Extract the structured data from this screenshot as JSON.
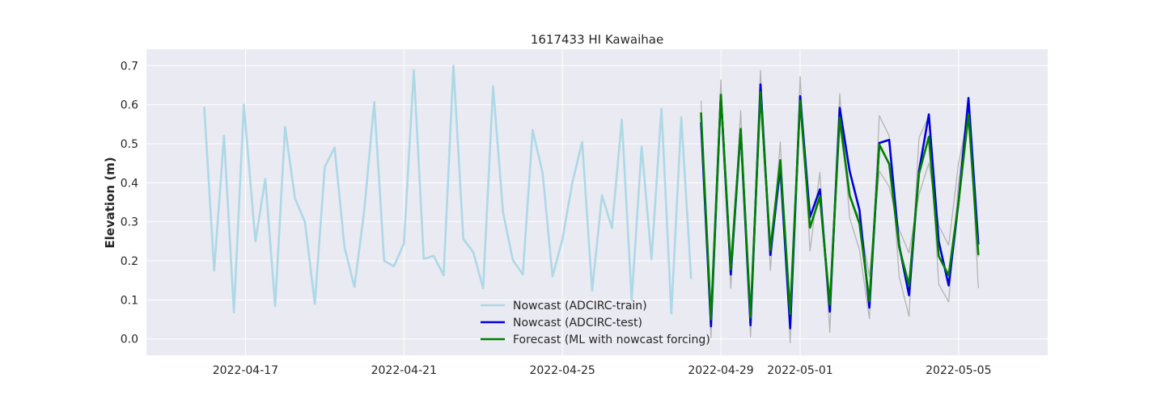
{
  "chart_data": {
    "type": "line",
    "title": "1617433 HI Kawaihae",
    "xlabel": "",
    "ylabel": "Elevation (m)",
    "x_axis": "date",
    "xlim": [
      "2022-04-14T12:00",
      "2022-05-07T06:00"
    ],
    "ylim": [
      -0.042,
      0.742
    ],
    "xticks": [
      "2022-04-17",
      "2022-04-21",
      "2022-04-25",
      "2022-04-29",
      "2022-05-01",
      "2022-05-05"
    ],
    "yticks": [
      0.0,
      0.1,
      0.2,
      0.3,
      0.4,
      0.5,
      0.6,
      0.7
    ],
    "grid": true,
    "legend_position": "lower-center",
    "background_color": "#EAEAF2",
    "series": [
      {
        "name": "Nowcast (ADCIRC-train)",
        "color": "#ADD8E6",
        "points": [
          [
            "2022-04-15T23:00",
            0.595
          ],
          [
            "2022-04-16T05:00",
            0.175
          ],
          [
            "2022-04-16T11:00",
            0.52
          ],
          [
            "2022-04-16T17:00",
            0.068
          ],
          [
            "2022-04-16T23:00",
            0.6
          ],
          [
            "2022-04-17T06:00",
            0.25
          ],
          [
            "2022-04-17T12:00",
            0.41
          ],
          [
            "2022-04-17T18:00",
            0.084
          ],
          [
            "2022-04-18T00:00",
            0.543
          ],
          [
            "2022-04-18T06:00",
            0.36
          ],
          [
            "2022-04-18T12:00",
            0.3
          ],
          [
            "2022-04-18T18:00",
            0.09
          ],
          [
            "2022-04-19T00:00",
            0.44
          ],
          [
            "2022-04-19T06:00",
            0.49
          ],
          [
            "2022-04-19T12:00",
            0.235
          ],
          [
            "2022-04-19T18:00",
            0.133
          ],
          [
            "2022-04-20T00:00",
            0.33
          ],
          [
            "2022-04-20T06:00",
            0.607
          ],
          [
            "2022-04-20T12:00",
            0.2
          ],
          [
            "2022-04-20T18:00",
            0.186
          ],
          [
            "2022-04-21T00:00",
            0.245
          ],
          [
            "2022-04-21T06:00",
            0.688
          ],
          [
            "2022-04-21T12:00",
            0.205
          ],
          [
            "2022-04-21T18:00",
            0.213
          ],
          [
            "2022-04-22T00:00",
            0.163
          ],
          [
            "2022-04-22T06:00",
            0.7
          ],
          [
            "2022-04-22T12:00",
            0.256
          ],
          [
            "2022-04-22T18:00",
            0.222
          ],
          [
            "2022-04-23T00:00",
            0.13
          ],
          [
            "2022-04-23T06:00",
            0.647
          ],
          [
            "2022-04-23T12:00",
            0.325
          ],
          [
            "2022-04-23T18:00",
            0.202
          ],
          [
            "2022-04-24T00:00",
            0.165
          ],
          [
            "2022-04-24T06:00",
            0.535
          ],
          [
            "2022-04-24T12:00",
            0.425
          ],
          [
            "2022-04-24T18:00",
            0.16
          ],
          [
            "2022-04-25T00:00",
            0.255
          ],
          [
            "2022-04-25T06:00",
            0.4
          ],
          [
            "2022-04-25T12:00",
            0.505
          ],
          [
            "2022-04-25T18:00",
            0.124
          ],
          [
            "2022-04-26T00:00",
            0.368
          ],
          [
            "2022-04-26T06:00",
            0.284
          ],
          [
            "2022-04-26T12:00",
            0.562
          ],
          [
            "2022-04-26T18:00",
            0.1
          ],
          [
            "2022-04-27T00:00",
            0.493
          ],
          [
            "2022-04-27T06:00",
            0.204
          ],
          [
            "2022-04-27T12:00",
            0.59
          ],
          [
            "2022-04-27T18:00",
            0.065
          ],
          [
            "2022-04-28T00:00",
            0.568
          ],
          [
            "2022-04-28T06:00",
            0.153
          ]
        ]
      },
      {
        "name": "",
        "color": "#AAAAAA",
        "points": [
          [
            "2022-04-28T12:00",
            0.61
          ],
          [
            "2022-04-28T18:00",
            0.003
          ],
          [
            "2022-04-29T00:00",
            0.663
          ],
          [
            "2022-04-29T06:00",
            0.13
          ],
          [
            "2022-04-29T12:00",
            0.585
          ],
          [
            "2022-04-29T18:00",
            0.005
          ],
          [
            "2022-04-30T00:00",
            0.688
          ],
          [
            "2022-04-30T06:00",
            0.175
          ],
          [
            "2022-04-30T12:00",
            0.505
          ],
          [
            "2022-04-30T18:00",
            -0.01
          ],
          [
            "2022-05-01T00:00",
            0.672
          ],
          [
            "2022-05-01T06:00",
            0.225
          ],
          [
            "2022-05-01T12:00",
            0.427
          ],
          [
            "2022-05-01T18:00",
            0.017
          ],
          [
            "2022-05-02T00:00",
            0.628
          ],
          [
            "2022-05-02T06:00",
            0.31
          ],
          [
            "2022-05-02T12:00",
            0.228
          ],
          [
            "2022-05-02T18:00",
            0.052
          ],
          [
            "2022-05-03T00:00",
            0.572
          ],
          [
            "2022-05-03T06:00",
            0.52
          ],
          [
            "2022-05-03T12:00",
            0.16
          ],
          [
            "2022-05-03T18:00",
            0.058
          ],
          [
            "2022-05-04T00:00",
            0.515
          ],
          [
            "2022-05-04T06:00",
            0.57
          ],
          [
            "2022-05-04T12:00",
            0.14
          ],
          [
            "2022-05-04T18:00",
            0.095
          ],
          [
            "2022-05-05T00:00",
            0.4
          ],
          [
            "2022-05-05T06:00",
            0.62
          ],
          [
            "2022-05-05T12:00",
            0.13
          ]
        ]
      },
      {
        "name": "",
        "color": "#AAAAAA",
        "points": [
          [
            "2022-04-28T12:00",
            0.555
          ],
          [
            "2022-04-28T18:00",
            0.045
          ],
          [
            "2022-04-29T00:00",
            0.605
          ],
          [
            "2022-04-29T06:00",
            0.195
          ],
          [
            "2022-04-29T12:00",
            0.525
          ],
          [
            "2022-04-29T18:00",
            0.06
          ],
          [
            "2022-04-30T00:00",
            0.615
          ],
          [
            "2022-04-30T06:00",
            0.24
          ],
          [
            "2022-04-30T12:00",
            0.43
          ],
          [
            "2022-04-30T18:00",
            0.085
          ],
          [
            "2022-05-01T00:00",
            0.595
          ],
          [
            "2022-05-01T06:00",
            0.29
          ],
          [
            "2022-05-01T12:00",
            0.355
          ],
          [
            "2022-05-01T18:00",
            0.1
          ],
          [
            "2022-05-02T00:00",
            0.545
          ],
          [
            "2022-05-02T06:00",
            0.36
          ],
          [
            "2022-05-02T12:00",
            0.31
          ],
          [
            "2022-05-02T18:00",
            0.16
          ],
          [
            "2022-05-03T00:00",
            0.43
          ],
          [
            "2022-05-03T06:00",
            0.39
          ],
          [
            "2022-05-03T12:00",
            0.28
          ],
          [
            "2022-05-03T18:00",
            0.22
          ],
          [
            "2022-05-04T00:00",
            0.37
          ],
          [
            "2022-05-04T06:00",
            0.45
          ],
          [
            "2022-05-04T12:00",
            0.29
          ],
          [
            "2022-05-04T18:00",
            0.24
          ],
          [
            "2022-05-05T00:00",
            0.45
          ],
          [
            "2022-05-05T06:00",
            0.58
          ],
          [
            "2022-05-05T12:00",
            0.21
          ]
        ]
      },
      {
        "name": "Nowcast (ADCIRC-test)",
        "color": "#0000DD",
        "points": [
          [
            "2022-04-28T12:00",
            0.555
          ],
          [
            "2022-04-28T18:00",
            0.032
          ],
          [
            "2022-04-29T00:00",
            0.625
          ],
          [
            "2022-04-29T06:00",
            0.165
          ],
          [
            "2022-04-29T12:00",
            0.535
          ],
          [
            "2022-04-29T18:00",
            0.035
          ],
          [
            "2022-04-30T00:00",
            0.652
          ],
          [
            "2022-04-30T06:00",
            0.215
          ],
          [
            "2022-04-30T12:00",
            0.44
          ],
          [
            "2022-04-30T18:00",
            0.027
          ],
          [
            "2022-05-01T00:00",
            0.622
          ],
          [
            "2022-05-01T06:00",
            0.312
          ],
          [
            "2022-05-01T12:00",
            0.383
          ],
          [
            "2022-05-01T18:00",
            0.07
          ],
          [
            "2022-05-02T00:00",
            0.592
          ],
          [
            "2022-05-02T06:00",
            0.43
          ],
          [
            "2022-05-02T12:00",
            0.33
          ],
          [
            "2022-05-02T18:00",
            0.08
          ],
          [
            "2022-05-03T00:00",
            0.502
          ],
          [
            "2022-05-03T06:00",
            0.51
          ],
          [
            "2022-05-03T12:00",
            0.24
          ],
          [
            "2022-05-03T18:00",
            0.112
          ],
          [
            "2022-05-04T00:00",
            0.43
          ],
          [
            "2022-05-04T06:00",
            0.575
          ],
          [
            "2022-05-04T12:00",
            0.25
          ],
          [
            "2022-05-04T18:00",
            0.137
          ],
          [
            "2022-05-05T00:00",
            0.35
          ],
          [
            "2022-05-05T06:00",
            0.617
          ],
          [
            "2022-05-05T12:00",
            0.242
          ]
        ]
      },
      {
        "name": "Forecast (ML with nowcast forcing)",
        "color": "#008000",
        "points": [
          [
            "2022-04-28T12:00",
            0.58
          ],
          [
            "2022-04-28T18:00",
            0.05
          ],
          [
            "2022-04-29T00:00",
            0.625
          ],
          [
            "2022-04-29T06:00",
            0.178
          ],
          [
            "2022-04-29T12:00",
            0.538
          ],
          [
            "2022-04-29T18:00",
            0.055
          ],
          [
            "2022-04-30T00:00",
            0.632
          ],
          [
            "2022-04-30T06:00",
            0.228
          ],
          [
            "2022-04-30T12:00",
            0.458
          ],
          [
            "2022-04-30T18:00",
            0.064
          ],
          [
            "2022-05-01T00:00",
            0.61
          ],
          [
            "2022-05-01T06:00",
            0.285
          ],
          [
            "2022-05-01T12:00",
            0.365
          ],
          [
            "2022-05-01T18:00",
            0.088
          ],
          [
            "2022-05-02T00:00",
            0.567
          ],
          [
            "2022-05-02T06:00",
            0.368
          ],
          [
            "2022-05-02T12:00",
            0.295
          ],
          [
            "2022-05-02T18:00",
            0.097
          ],
          [
            "2022-05-03T00:00",
            0.498
          ],
          [
            "2022-05-03T06:00",
            0.448
          ],
          [
            "2022-05-03T12:00",
            0.235
          ],
          [
            "2022-05-03T18:00",
            0.137
          ],
          [
            "2022-05-04T00:00",
            0.423
          ],
          [
            "2022-05-04T06:00",
            0.518
          ],
          [
            "2022-05-04T12:00",
            0.212
          ],
          [
            "2022-05-04T18:00",
            0.163
          ],
          [
            "2022-05-05T00:00",
            0.35
          ],
          [
            "2022-05-05T06:00",
            0.575
          ],
          [
            "2022-05-05T12:00",
            0.215
          ]
        ]
      }
    ]
  }
}
